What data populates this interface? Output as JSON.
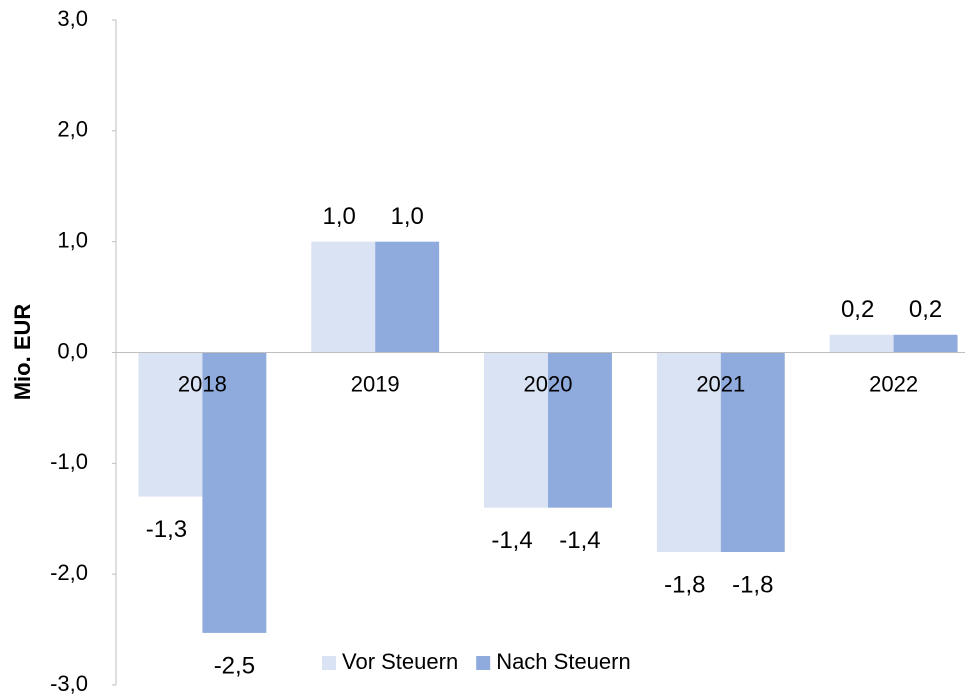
{
  "chart_data": {
    "type": "bar",
    "y_label": "Mio. EUR",
    "categories": [
      "2018",
      "2019",
      "2020",
      "2021",
      "2022"
    ],
    "series": [
      {
        "name": "Vor Steuern",
        "color": "#dae3f3",
        "values": [
          -1.3,
          1.0,
          -1.4,
          -1.8,
          0.16
        ],
        "value_labels": [
          "-1,3",
          "1,0",
          "-1,4",
          "-1,8",
          "0,2"
        ]
      },
      {
        "name": "Nach Steuern",
        "color": "#8faadc",
        "values": [
          -2.53,
          1.0,
          -1.4,
          -1.8,
          0.16
        ],
        "value_labels": [
          "-2,5",
          "1,0",
          "-1,4",
          "-1,8",
          "0,2"
        ]
      }
    ],
    "ylim": [
      -3,
      3
    ],
    "yticks": [
      {
        "value": -3,
        "label": "-3,0"
      },
      {
        "value": -2,
        "label": "-2,0"
      },
      {
        "value": -1,
        "label": "-1,0"
      },
      {
        "value": 0,
        "label": "0,0"
      },
      {
        "value": 1,
        "label": "1,0"
      },
      {
        "value": 2,
        "label": "2,0"
      },
      {
        "value": 3,
        "label": "3,0"
      }
    ],
    "grid": false,
    "legend": "bottom"
  }
}
